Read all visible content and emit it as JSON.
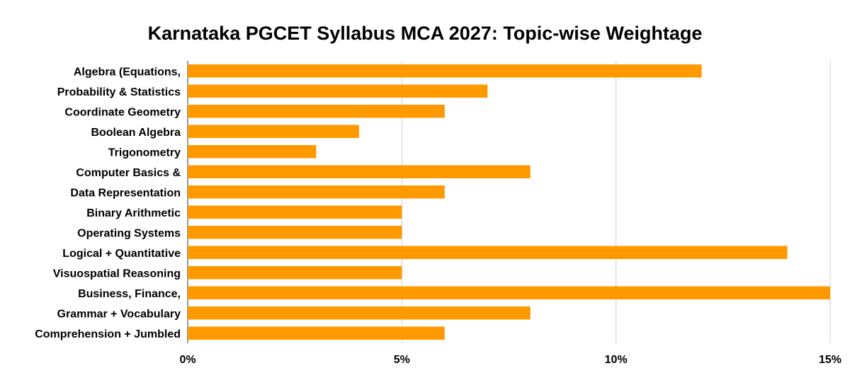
{
  "chart_data": {
    "type": "bar",
    "orientation": "horizontal",
    "title": "Karnataka PGCET Syllabus MCA 2027: Topic-wise Weightage",
    "xlabel": "",
    "ylabel": "",
    "categories": [
      "Algebra (Equations,",
      "Probability & Statistics",
      "Coordinate Geometry",
      "Boolean Algebra",
      "Trigonometry",
      "Computer Basics &",
      "Data Representation",
      "Binary Arithmetic",
      "Operating Systems",
      "Logical + Quantitative",
      "Visuospatial Reasoning",
      "Business, Finance,",
      "Grammar + Vocabulary",
      "Comprehension + Jumbled"
    ],
    "values": [
      12,
      7,
      6,
      4,
      3,
      8,
      6,
      5,
      5,
      14,
      5,
      15,
      8,
      6
    ],
    "value_unit": "%",
    "xlim": [
      0,
      15
    ],
    "xticks": [
      {
        "value": 0,
        "label": "0%"
      },
      {
        "value": 5,
        "label": "5%"
      },
      {
        "value": 10,
        "label": "10%"
      },
      {
        "value": 15,
        "label": "15%"
      }
    ],
    "grid": "vertical",
    "legend": "none",
    "bar_color": "#ff9900"
  }
}
